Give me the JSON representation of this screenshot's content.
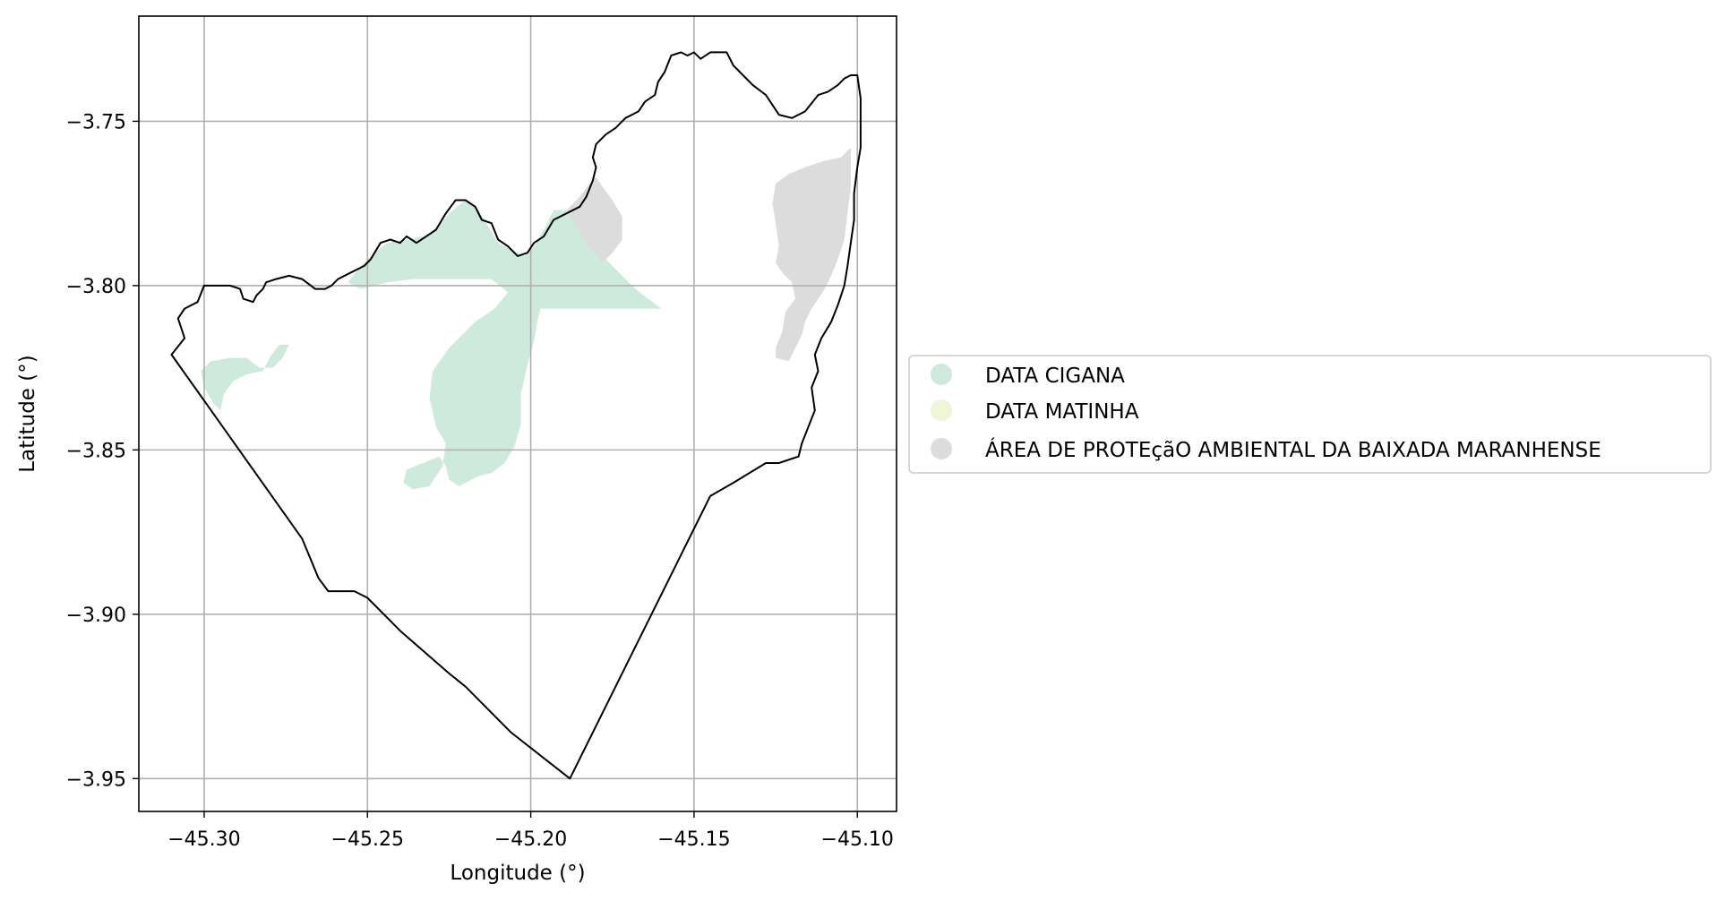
{
  "chart_data": {
    "type": "map",
    "xlabel": "Longitude (°)",
    "ylabel": "Latitude (°)",
    "xlim": [
      -45.32,
      -45.088
    ],
    "ylim": [
      -3.96,
      -3.718
    ],
    "xticks": [
      -45.3,
      -45.25,
      -45.2,
      -45.15,
      -45.1
    ],
    "yticks": [
      -3.75,
      -3.8,
      -3.85,
      -3.9,
      -3.95
    ],
    "xtick_labels": [
      "−45.30",
      "−45.25",
      "−45.20",
      "−45.15",
      "−45.10"
    ],
    "ytick_labels": [
      "−3.75",
      "−3.80",
      "−3.85",
      "−3.90",
      "−3.95"
    ],
    "grid": true,
    "legend_position": "right",
    "legend": [
      {
        "label": "DATA CIGANA",
        "color": "#cdeadc"
      },
      {
        "label": "DATA MATINHA",
        "color": "#eef5d8"
      },
      {
        "label": "ÁREA DE PROTEçãO AMBIENTAL DA BAIXADA MARANHENSE",
        "color": "#dcdcdc"
      }
    ],
    "layers": [
      {
        "name": "municipality_boundary",
        "style": "outline",
        "color": "#000000",
        "coords": [
          [
            -45.31,
            -3.821
          ],
          [
            -45.306,
            -3.816
          ],
          [
            -45.308,
            -3.81
          ],
          [
            -45.306,
            -3.807
          ],
          [
            -45.302,
            -3.805
          ],
          [
            -45.3,
            -3.8
          ],
          [
            -45.296,
            -3.8
          ],
          [
            -45.292,
            -3.8
          ],
          [
            -45.289,
            -3.801
          ],
          [
            -45.288,
            -3.804
          ],
          [
            -45.285,
            -3.805
          ],
          [
            -45.284,
            -3.803
          ],
          [
            -45.282,
            -3.801
          ],
          [
            -45.281,
            -3.799
          ],
          [
            -45.278,
            -3.798
          ],
          [
            -45.274,
            -3.797
          ],
          [
            -45.27,
            -3.798
          ],
          [
            -45.266,
            -3.801
          ],
          [
            -45.263,
            -3.801
          ],
          [
            -45.261,
            -3.8
          ],
          [
            -45.259,
            -3.798
          ],
          [
            -45.255,
            -3.796
          ],
          [
            -45.251,
            -3.794
          ],
          [
            -45.249,
            -3.792
          ],
          [
            -45.246,
            -3.787
          ],
          [
            -45.243,
            -3.786
          ],
          [
            -45.24,
            -3.787
          ],
          [
            -45.238,
            -3.785
          ],
          [
            -45.235,
            -3.787
          ],
          [
            -45.232,
            -3.785
          ],
          [
            -45.229,
            -3.783
          ],
          [
            -45.226,
            -3.778
          ],
          [
            -45.223,
            -3.774
          ],
          [
            -45.22,
            -3.774
          ],
          [
            -45.217,
            -3.776
          ],
          [
            -45.215,
            -3.78
          ],
          [
            -45.212,
            -3.781
          ],
          [
            -45.21,
            -3.786
          ],
          [
            -45.207,
            -3.788
          ],
          [
            -45.204,
            -3.791
          ],
          [
            -45.201,
            -3.79
          ],
          [
            -45.199,
            -3.787
          ],
          [
            -45.196,
            -3.785
          ],
          [
            -45.193,
            -3.78
          ],
          [
            -45.189,
            -3.778
          ],
          [
            -45.185,
            -3.776
          ],
          [
            -45.183,
            -3.773
          ],
          [
            -45.181,
            -3.768
          ],
          [
            -45.18,
            -3.764
          ],
          [
            -45.181,
            -3.761
          ],
          [
            -45.18,
            -3.757
          ],
          [
            -45.177,
            -3.754
          ],
          [
            -45.174,
            -3.752
          ],
          [
            -45.171,
            -3.749
          ],
          [
            -45.167,
            -3.747
          ],
          [
            -45.165,
            -3.744
          ],
          [
            -45.162,
            -3.742
          ],
          [
            -45.161,
            -3.738
          ],
          [
            -45.159,
            -3.735
          ],
          [
            -45.157,
            -3.73
          ],
          [
            -45.154,
            -3.729
          ],
          [
            -45.152,
            -3.73
          ],
          [
            -45.15,
            -3.729
          ],
          [
            -45.148,
            -3.731
          ],
          [
            -45.145,
            -3.729
          ],
          [
            -45.14,
            -3.729
          ],
          [
            -45.138,
            -3.733
          ],
          [
            -45.135,
            -3.736
          ],
          [
            -45.132,
            -3.739
          ],
          [
            -45.128,
            -3.742
          ],
          [
            -45.124,
            -3.748
          ],
          [
            -45.12,
            -3.749
          ],
          [
            -45.116,
            -3.747
          ],
          [
            -45.112,
            -3.742
          ],
          [
            -45.109,
            -3.741
          ],
          [
            -45.106,
            -3.739
          ],
          [
            -45.104,
            -3.737
          ],
          [
            -45.102,
            -3.736
          ],
          [
            -45.1,
            -3.736
          ],
          [
            -45.099,
            -3.743
          ],
          [
            -45.099,
            -3.751
          ],
          [
            -45.099,
            -3.758
          ],
          [
            -45.1,
            -3.764
          ],
          [
            -45.101,
            -3.772
          ],
          [
            -45.101,
            -3.78
          ],
          [
            -45.102,
            -3.787
          ],
          [
            -45.103,
            -3.794
          ],
          [
            -45.104,
            -3.8
          ],
          [
            -45.106,
            -3.806
          ],
          [
            -45.108,
            -3.811
          ],
          [
            -45.111,
            -3.816
          ],
          [
            -45.113,
            -3.821
          ],
          [
            -45.112,
            -3.826
          ],
          [
            -45.114,
            -3.831
          ],
          [
            -45.113,
            -3.838
          ],
          [
            -45.115,
            -3.843
          ],
          [
            -45.117,
            -3.848
          ],
          [
            -45.118,
            -3.852
          ],
          [
            -45.124,
            -3.854
          ],
          [
            -45.128,
            -3.854
          ],
          [
            -45.133,
            -3.857
          ],
          [
            -45.138,
            -3.86
          ],
          [
            -45.145,
            -3.864
          ],
          [
            -45.188,
            -3.95
          ],
          [
            -45.206,
            -3.936
          ],
          [
            -45.22,
            -3.922
          ],
          [
            -45.225,
            -3.918
          ],
          [
            -45.24,
            -3.905
          ],
          [
            -45.25,
            -3.895
          ],
          [
            -45.254,
            -3.893
          ],
          [
            -45.262,
            -3.893
          ],
          [
            -45.265,
            -3.889
          ],
          [
            -45.27,
            -3.877
          ],
          [
            -45.31,
            -3.821
          ]
        ]
      },
      {
        "name": "DATA CIGANA",
        "color": "#cdeadc",
        "coords": [
          [
            -45.256,
            -3.799
          ],
          [
            -45.252,
            -3.794
          ],
          [
            -45.248,
            -3.79
          ],
          [
            -45.244,
            -3.787
          ],
          [
            -45.238,
            -3.786
          ],
          [
            -45.233,
            -3.785
          ],
          [
            -45.229,
            -3.783
          ],
          [
            -45.225,
            -3.778
          ],
          [
            -45.22,
            -3.774
          ],
          [
            -45.216,
            -3.777
          ],
          [
            -45.213,
            -3.782
          ],
          [
            -45.21,
            -3.787
          ],
          [
            -45.206,
            -3.789
          ],
          [
            -45.202,
            -3.791
          ],
          [
            -45.199,
            -3.788
          ],
          [
            -45.196,
            -3.783
          ],
          [
            -45.193,
            -3.777
          ],
          [
            -45.189,
            -3.777
          ],
          [
            -45.185,
            -3.779
          ],
          [
            -45.183,
            -3.784
          ],
          [
            -45.18,
            -3.789
          ],
          [
            -45.176,
            -3.793
          ],
          [
            -45.172,
            -3.797
          ],
          [
            -45.168,
            -3.801
          ],
          [
            -45.164,
            -3.804
          ],
          [
            -45.16,
            -3.807
          ],
          [
            -45.197,
            -3.807
          ],
          [
            -45.198,
            -3.811
          ],
          [
            -45.199,
            -3.817
          ],
          [
            -45.201,
            -3.824
          ],
          [
            -45.203,
            -3.833
          ],
          [
            -45.203,
            -3.842
          ],
          [
            -45.205,
            -3.849
          ],
          [
            -45.208,
            -3.854
          ],
          [
            -45.212,
            -3.857
          ],
          [
            -45.216,
            -3.858
          ],
          [
            -45.222,
            -3.861
          ],
          [
            -45.225,
            -3.859
          ],
          [
            -45.226,
            -3.855
          ],
          [
            -45.228,
            -3.852
          ],
          [
            -45.233,
            -3.854
          ],
          [
            -45.238,
            -3.856
          ],
          [
            -45.239,
            -3.86
          ],
          [
            -45.236,
            -3.862
          ],
          [
            -45.231,
            -3.861
          ],
          [
            -45.227,
            -3.855
          ],
          [
            -45.226,
            -3.848
          ],
          [
            -45.229,
            -3.843
          ],
          [
            -45.231,
            -3.834
          ],
          [
            -45.23,
            -3.826
          ],
          [
            -45.225,
            -3.819
          ],
          [
            -45.221,
            -3.815
          ],
          [
            -45.217,
            -3.811
          ],
          [
            -45.211,
            -3.807
          ],
          [
            -45.207,
            -3.802
          ],
          [
            -45.212,
            -3.798
          ],
          [
            -45.22,
            -3.798
          ],
          [
            -45.228,
            -3.798
          ],
          [
            -45.236,
            -3.798
          ],
          [
            -45.244,
            -3.799
          ],
          [
            -45.252,
            -3.801
          ],
          [
            -45.256,
            -3.799
          ]
        ]
      },
      {
        "name": "DATA CIGANA",
        "color": "#cdeadc",
        "coords": [
          [
            -45.301,
            -3.826
          ],
          [
            -45.298,
            -3.823
          ],
          [
            -45.292,
            -3.822
          ],
          [
            -45.287,
            -3.822
          ],
          [
            -45.283,
            -3.825
          ],
          [
            -45.279,
            -3.825
          ],
          [
            -45.276,
            -3.822
          ],
          [
            -45.274,
            -3.818
          ],
          [
            -45.277,
            -3.818
          ],
          [
            -45.28,
            -3.822
          ],
          [
            -45.282,
            -3.826
          ],
          [
            -45.287,
            -3.827
          ],
          [
            -45.291,
            -3.829
          ],
          [
            -45.294,
            -3.833
          ],
          [
            -45.295,
            -3.838
          ],
          [
            -45.297,
            -3.836
          ],
          [
            -45.3,
            -3.831
          ],
          [
            -45.301,
            -3.826
          ]
        ]
      },
      {
        "name": "ÁREA DE PROTEçãO AMBIENTAL DA BAIXADA MARANHENSE",
        "color": "#dcdcdc",
        "coords": [
          [
            -45.189,
            -3.777
          ],
          [
            -45.185,
            -3.773
          ],
          [
            -45.182,
            -3.769
          ],
          [
            -45.18,
            -3.767
          ],
          [
            -45.178,
            -3.77
          ],
          [
            -45.175,
            -3.774
          ],
          [
            -45.172,
            -3.779
          ],
          [
            -45.172,
            -3.786
          ],
          [
            -45.175,
            -3.79
          ],
          [
            -45.178,
            -3.793
          ],
          [
            -45.183,
            -3.787
          ],
          [
            -45.189,
            -3.777
          ]
        ]
      },
      {
        "name": "ÁREA DE PROTEçãO AMBIENTAL DA BAIXADA MARANHENSE",
        "color": "#dcdcdc",
        "coords": [
          [
            -45.102,
            -3.758
          ],
          [
            -45.105,
            -3.761
          ],
          [
            -45.11,
            -3.762
          ],
          [
            -45.116,
            -3.764
          ],
          [
            -45.121,
            -3.766
          ],
          [
            -45.125,
            -3.769
          ],
          [
            -45.126,
            -3.775
          ],
          [
            -45.125,
            -3.781
          ],
          [
            -45.124,
            -3.788
          ],
          [
            -45.125,
            -3.793
          ],
          [
            -45.123,
            -3.796
          ],
          [
            -45.12,
            -3.799
          ],
          [
            -45.119,
            -3.804
          ],
          [
            -45.122,
            -3.808
          ],
          [
            -45.123,
            -3.814
          ],
          [
            -45.125,
            -3.819
          ],
          [
            -45.125,
            -3.822
          ],
          [
            -45.121,
            -3.823
          ],
          [
            -45.119,
            -3.819
          ],
          [
            -45.117,
            -3.815
          ],
          [
            -45.116,
            -3.811
          ],
          [
            -45.114,
            -3.807
          ],
          [
            -45.112,
            -3.804
          ],
          [
            -45.11,
            -3.801
          ],
          [
            -45.108,
            -3.797
          ],
          [
            -45.106,
            -3.792
          ],
          [
            -45.104,
            -3.786
          ],
          [
            -45.103,
            -3.778
          ],
          [
            -45.102,
            -3.77
          ],
          [
            -45.102,
            -3.763
          ],
          [
            -45.102,
            -3.758
          ]
        ]
      }
    ]
  }
}
